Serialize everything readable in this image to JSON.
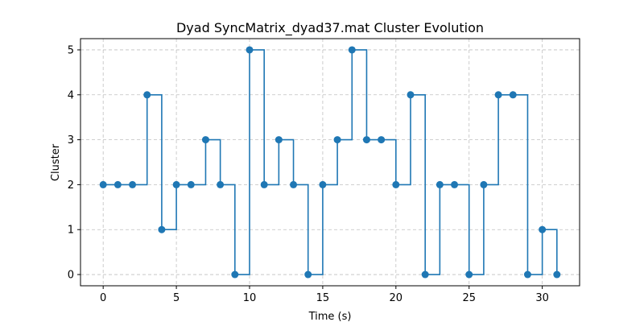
{
  "chart_data": {
    "type": "line",
    "step": "post",
    "title": "Dyad SyncMatrix_dyad37.mat Cluster Evolution",
    "xlabel": "Time (s)",
    "ylabel": "Cluster",
    "xlim": [
      -1.55,
      32.55
    ],
    "ylim": [
      -0.25,
      5.25
    ],
    "xticks": [
      0,
      5,
      10,
      15,
      20,
      25,
      30
    ],
    "yticks": [
      0,
      1,
      2,
      3,
      4,
      5
    ],
    "grid": true,
    "color": "#1f77b4",
    "x": [
      0,
      1,
      2,
      3,
      4,
      5,
      6,
      7,
      8,
      9,
      10,
      11,
      12,
      13,
      14,
      15,
      16,
      17,
      18,
      19,
      20,
      21,
      22,
      23,
      24,
      25,
      26,
      27,
      28,
      29,
      30,
      31
    ],
    "y": [
      2,
      2,
      2,
      4,
      1,
      2,
      2,
      3,
      2,
      0,
      5,
      2,
      3,
      2,
      0,
      2,
      3,
      5,
      3,
      3,
      2,
      4,
      0,
      2,
      2,
      0,
      2,
      4,
      4,
      0,
      1,
      0
    ]
  }
}
